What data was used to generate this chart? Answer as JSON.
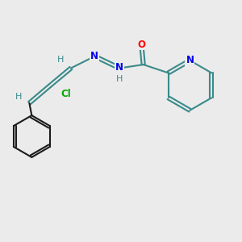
{
  "background_color": "#ebebeb",
  "bond_color": "#3a8a8a",
  "phenyl_bond_color": "#1a1a1a",
  "atom_colors": {
    "O": "#ff0000",
    "N": "#0000ee",
    "Cl": "#00aa00",
    "H": "#3a8a8a",
    "C": "#1a1a1a"
  },
  "figsize": [
    3.0,
    3.0
  ],
  "dpi": 100
}
